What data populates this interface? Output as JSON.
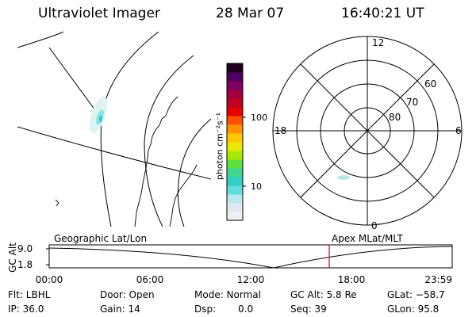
{
  "header": {
    "title": "Ultraviolet Imager",
    "date": "28 Mar 07",
    "time": "16:40:21 UT"
  },
  "colorbar": {
    "unit_label": "photon cm⁻²s⁻¹",
    "ticks": [
      "100",
      "10"
    ],
    "colors": [
      "#f0f0f0",
      "#e0e8f0",
      "#b8e8ec",
      "#60dcdc",
      "#30d0c8",
      "#40d890",
      "#60e040",
      "#a8e800",
      "#e8e800",
      "#ffc800",
      "#ff9000",
      "#ff5000",
      "#e80000",
      "#c00020",
      "#a00040",
      "#800060",
      "#500060",
      "#200020"
    ]
  },
  "polar": {
    "mlt_labels": [
      "12",
      "18",
      "6",
      "0"
    ],
    "lat_labels": [
      "60",
      "70",
      "80"
    ]
  },
  "timeline": {
    "left_label": "Geographic Lat/Lon",
    "right_label": "Apex MLat/MLT",
    "axis_title": "GC Alt",
    "y_ticks": [
      "9.0",
      "1.8"
    ],
    "x_ticks": [
      "00:00",
      "06:00",
      "12:00",
      "18:00",
      "23:59"
    ],
    "marker_time": "16:40",
    "marker_color": "#e00000"
  },
  "status": {
    "row1": {
      "flt": "Flt: LBHL",
      "door": "Door: Open",
      "mode": "Mode: Normal",
      "gcalt": "GC Alt: 5.8 Re",
      "glat": "GLat: −58.7"
    },
    "row2": {
      "ip": "IP: 36.0",
      "gain": "Gain: 14",
      "dsp_label": "Dsp:",
      "dsp_value": "0.0",
      "seq": "Seq: 39",
      "glon": "GLon: 95.8"
    }
  }
}
